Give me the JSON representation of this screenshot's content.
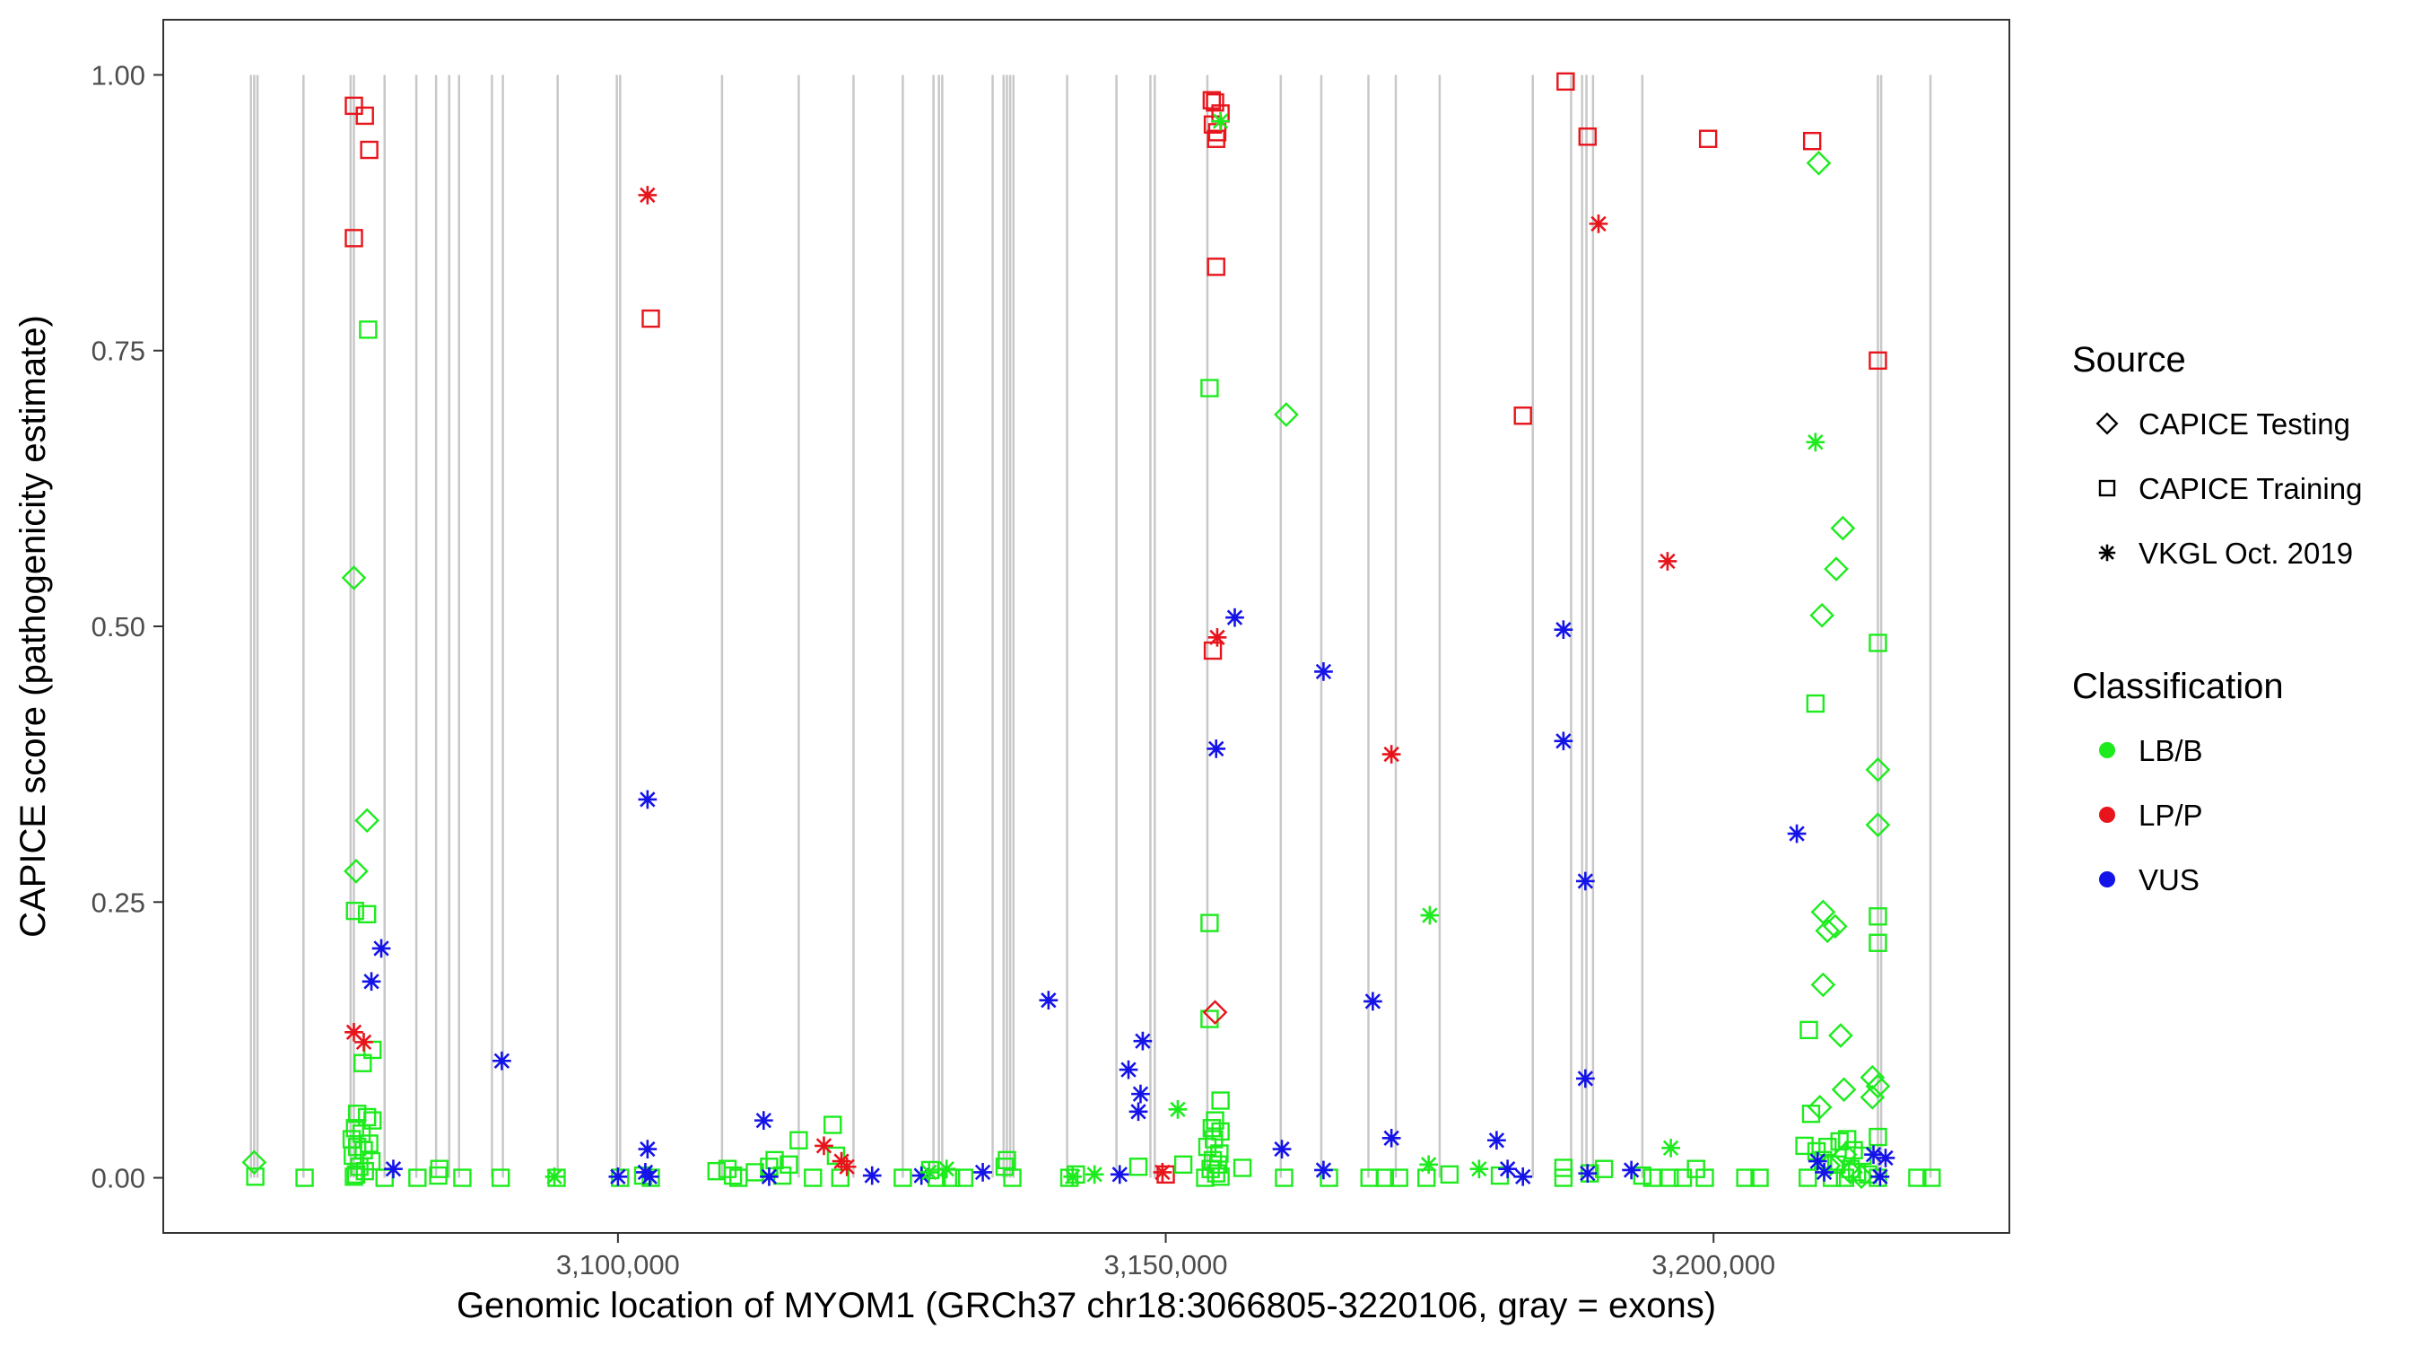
{
  "chart_data": {
    "type": "scatter",
    "title": "",
    "xlabel": "Genomic location of MYOM1 (GRCh37 chr18:3066805-3220106, gray = exons)",
    "ylabel": "CAPICE score (pathogenicity estimate)",
    "xlim": [
      3058500,
      3227000
    ],
    "ylim": [
      -0.05,
      1.05
    ],
    "x_ticks": [
      3100000,
      3150000,
      3200000
    ],
    "x_tick_labels": [
      "3,100,000",
      "3,150,000",
      "3,200,000"
    ],
    "y_ticks": [
      0.0,
      0.25,
      0.5,
      0.75,
      1.0
    ],
    "y_tick_labels": [
      "0.00",
      "0.25",
      "0.50",
      "0.75",
      "1.00"
    ],
    "grid": false,
    "exons": [
      3066500,
      3066800,
      3067100,
      3071300,
      3075600,
      3075900,
      3078700,
      3081600,
      3083400,
      3084600,
      3085500,
      3088500,
      3089500,
      3094500,
      3099900,
      3100200,
      3109500,
      3116500,
      3121500,
      3126000,
      3128800,
      3129300,
      3129600,
      3134200,
      3135200,
      3135500,
      3135800,
      3136100,
      3141000,
      3145500,
      3148600,
      3149000,
      3153800,
      3160500,
      3164200,
      3168500,
      3171000,
      3175000,
      3183500,
      3187000,
      3188000,
      3188400,
      3189000,
      3193500,
      3215000,
      3215300,
      3219800
    ],
    "legend": {
      "source_title": "Source",
      "source_entries": [
        {
          "label": "CAPICE Testing",
          "shape": "diamond"
        },
        {
          "label": "CAPICE Training",
          "shape": "square"
        },
        {
          "label": "VKGL Oct. 2019",
          "shape": "asterisk"
        }
      ],
      "classification_title": "Classification",
      "classification_entries": [
        {
          "label": "LB/B",
          "color": "#1DEB1D"
        },
        {
          "label": "LP/P",
          "color": "#E8141B"
        },
        {
          "label": "VUS",
          "color": "#1414E8"
        }
      ],
      "placement": "right"
    },
    "series": [
      {
        "name": "CAPICE Training LP/P",
        "shape": "square",
        "color": "#E8141B",
        "points": [
          [
            3075900,
            0.972
          ],
          [
            3076900,
            0.963
          ],
          [
            3077300,
            0.932
          ],
          [
            3075900,
            0.852
          ],
          [
            3103000,
            0.779
          ],
          [
            3154200,
            0.977
          ],
          [
            3154500,
            0.975
          ],
          [
            3155000,
            0.965
          ],
          [
            3154300,
            0.955
          ],
          [
            3154700,
            0.948
          ],
          [
            3154600,
            0.942
          ],
          [
            3154600,
            0.826
          ],
          [
            3154300,
            0.478
          ],
          [
            3150000,
            0.003
          ],
          [
            3186500,
            0.994
          ],
          [
            3188500,
            0.944
          ],
          [
            3199500,
            0.942
          ],
          [
            3209000,
            0.94
          ],
          [
            3182600,
            0.691
          ],
          [
            3215000,
            0.741
          ]
        ]
      },
      {
        "name": "CAPICE Training LB/B",
        "shape": "square",
        "color": "#1DEB1D",
        "points": [
          [
            3077200,
            0.769
          ],
          [
            3076000,
            0.242
          ],
          [
            3077100,
            0.239
          ],
          [
            3077600,
            0.116
          ],
          [
            3076700,
            0.104
          ],
          [
            3076200,
            0.058
          ],
          [
            3077100,
            0.055
          ],
          [
            3077600,
            0.052
          ],
          [
            3076000,
            0.045
          ],
          [
            3076600,
            0.04
          ],
          [
            3075700,
            0.035
          ],
          [
            3077300,
            0.031
          ],
          [
            3076200,
            0.028
          ],
          [
            3076800,
            0.025
          ],
          [
            3075800,
            0.02
          ],
          [
            3077500,
            0.015
          ],
          [
            3076400,
            0.01
          ],
          [
            3076900,
            0.006
          ],
          [
            3076100,
            0.003
          ],
          [
            3075900,
            0.001
          ],
          [
            3066900,
            0.001
          ],
          [
            3071400,
            0.0
          ],
          [
            3083700,
            0.008
          ],
          [
            3083600,
            0.002
          ],
          [
            3078700,
            0.0
          ],
          [
            3081700,
            0.0
          ],
          [
            3085800,
            0.0
          ],
          [
            3089300,
            0.0
          ],
          [
            3094400,
            0.0
          ],
          [
            3100200,
            0.0
          ],
          [
            3102300,
            0.002
          ],
          [
            3103000,
            0.0
          ],
          [
            3109000,
            0.006
          ],
          [
            3110000,
            0.008
          ],
          [
            3110500,
            0.002
          ],
          [
            3111000,
            0.0
          ],
          [
            3112500,
            0.005
          ],
          [
            3113800,
            0.01
          ],
          [
            3114300,
            0.016
          ],
          [
            3115000,
            0.002
          ],
          [
            3115600,
            0.012
          ],
          [
            3116500,
            0.034
          ],
          [
            3117800,
            0.0
          ],
          [
            3119600,
            0.048
          ],
          [
            3119900,
            0.02
          ],
          [
            3120300,
            0.0
          ],
          [
            3126000,
            0.0
          ],
          [
            3128500,
            0.007
          ],
          [
            3129100,
            0.0
          ],
          [
            3130400,
            0.0
          ],
          [
            3131600,
            0.0
          ],
          [
            3135300,
            0.01
          ],
          [
            3135500,
            0.016
          ],
          [
            3136000,
            0.0
          ],
          [
            3141200,
            0.0
          ],
          [
            3141800,
            0.003
          ],
          [
            3147500,
            0.01
          ],
          [
            3151600,
            0.012
          ],
          [
            3153600,
            0.0
          ],
          [
            3154000,
            0.716
          ],
          [
            3154000,
            0.231
          ],
          [
            3154000,
            0.144
          ],
          [
            3155000,
            0.07
          ],
          [
            3154500,
            0.052
          ],
          [
            3154200,
            0.045
          ],
          [
            3155000,
            0.042
          ],
          [
            3154400,
            0.035
          ],
          [
            3153800,
            0.028
          ],
          [
            3154900,
            0.022
          ],
          [
            3154300,
            0.016
          ],
          [
            3154800,
            0.012
          ],
          [
            3154100,
            0.008
          ],
          [
            3154600,
            0.004
          ],
          [
            3155000,
            0.001
          ],
          [
            3157000,
            0.009
          ],
          [
            3160800,
            0.0
          ],
          [
            3164900,
            0.0
          ],
          [
            3168600,
            0.0
          ],
          [
            3170000,
            0.0
          ],
          [
            3171300,
            0.0
          ],
          [
            3173800,
            0.0
          ],
          [
            3175900,
            0.003
          ],
          [
            3180500,
            0.002
          ],
          [
            3186300,
            0.009
          ],
          [
            3186300,
            0.0
          ],
          [
            3188700,
            0.004
          ],
          [
            3190000,
            0.008
          ],
          [
            3193500,
            0.002
          ],
          [
            3194400,
            0.0
          ],
          [
            3196000,
            0.0
          ],
          [
            3197200,
            0.0
          ],
          [
            3198400,
            0.008
          ],
          [
            3199200,
            0.0
          ],
          [
            3202900,
            0.0
          ],
          [
            3204200,
            0.0
          ],
          [
            3208700,
            0.134
          ],
          [
            3208900,
            0.058
          ],
          [
            3209300,
            0.43
          ],
          [
            3208300,
            0.029
          ],
          [
            3209400,
            0.024
          ],
          [
            3210400,
            0.028
          ],
          [
            3211500,
            0.033
          ],
          [
            3212200,
            0.035
          ],
          [
            3212800,
            0.025
          ],
          [
            3213600,
            0.02
          ],
          [
            3210000,
            0.016
          ],
          [
            3211200,
            0.012
          ],
          [
            3212500,
            0.008
          ],
          [
            3213100,
            0.005
          ],
          [
            3214100,
            0.003
          ],
          [
            3208600,
            0.0
          ],
          [
            3210800,
            0.0
          ],
          [
            3212000,
            0.0
          ],
          [
            3215000,
            0.485
          ],
          [
            3215000,
            0.237
          ],
          [
            3215000,
            0.213
          ],
          [
            3215000,
            0.037
          ],
          [
            3215000,
            0.0
          ],
          [
            3218600,
            0.0
          ],
          [
            3219900,
            0.0
          ]
        ]
      },
      {
        "name": "CAPICE Testing LB/B",
        "shape": "diamond",
        "color": "#1DEB1D",
        "points": [
          [
            3066800,
            0.014
          ],
          [
            3075900,
            0.544
          ],
          [
            3077100,
            0.324
          ],
          [
            3076100,
            0.278
          ],
          [
            3161000,
            0.692
          ],
          [
            3209600,
            0.92
          ],
          [
            3211800,
            0.589
          ],
          [
            3211200,
            0.552
          ],
          [
            3209900,
            0.51
          ],
          [
            3215000,
            0.37
          ],
          [
            3215000,
            0.32
          ],
          [
            3210000,
            0.241
          ],
          [
            3211100,
            0.228
          ],
          [
            3210400,
            0.224
          ],
          [
            3210000,
            0.175
          ],
          [
            3211600,
            0.129
          ],
          [
            3214500,
            0.091
          ],
          [
            3215000,
            0.083
          ],
          [
            3211900,
            0.08
          ],
          [
            3214500,
            0.073
          ],
          [
            3209700,
            0.064
          ],
          [
            3212000,
            0.021
          ],
          [
            3212500,
            0.005
          ],
          [
            3213500,
            0.001
          ],
          [
            3210500,
            0.011
          ]
        ]
      },
      {
        "name": "CAPICE Testing LP/P",
        "shape": "diamond",
        "color": "#E8141B",
        "points": [
          [
            3154500,
            0.15
          ]
        ]
      },
      {
        "name": "VKGL Oct. 2019 LP/P",
        "shape": "asterisk",
        "color": "#E8141B",
        "points": [
          [
            3102700,
            0.891
          ],
          [
            3075900,
            0.132
          ],
          [
            3076800,
            0.123
          ],
          [
            3118800,
            0.029
          ],
          [
            3120400,
            0.015
          ],
          [
            3120900,
            0.01
          ],
          [
            3149700,
            0.005
          ],
          [
            3154700,
            0.49
          ],
          [
            3170600,
            0.384
          ],
          [
            3189500,
            0.865
          ],
          [
            3195800,
            0.559
          ]
        ]
      },
      {
        "name": "VKGL Oct. 2019 VUS",
        "shape": "asterisk",
        "color": "#1414E8",
        "points": [
          [
            3078400,
            0.208
          ],
          [
            3077500,
            0.178
          ],
          [
            3079500,
            0.008
          ],
          [
            3089400,
            0.106
          ],
          [
            3100000,
            0.001
          ],
          [
            3102700,
            0.343
          ],
          [
            3102700,
            0.026
          ],
          [
            3102500,
            0.005
          ],
          [
            3102900,
            0.001
          ],
          [
            3113300,
            0.052
          ],
          [
            3113800,
            0.001
          ],
          [
            3123200,
            0.002
          ],
          [
            3127700,
            0.002
          ],
          [
            3133300,
            0.005
          ],
          [
            3139300,
            0.161
          ],
          [
            3146600,
            0.098
          ],
          [
            3147700,
            0.076
          ],
          [
            3147500,
            0.06
          ],
          [
            3147900,
            0.124
          ],
          [
            3156300,
            0.508
          ],
          [
            3154600,
            0.389
          ],
          [
            3160600,
            0.026
          ],
          [
            3164400,
            0.459
          ],
          [
            3164400,
            0.007
          ],
          [
            3168900,
            0.16
          ],
          [
            3170600,
            0.036
          ],
          [
            3180200,
            0.034
          ],
          [
            3181200,
            0.008
          ],
          [
            3182600,
            0.001
          ],
          [
            3186300,
            0.497
          ],
          [
            3186300,
            0.396
          ],
          [
            3188300,
            0.269
          ],
          [
            3188300,
            0.09
          ],
          [
            3188500,
            0.004
          ],
          [
            3192500,
            0.007
          ],
          [
            3207600,
            0.312
          ],
          [
            3209500,
            0.015
          ],
          [
            3214600,
            0.021
          ],
          [
            3215700,
            0.018
          ],
          [
            3215200,
            0.001
          ],
          [
            3210100,
            0.005
          ],
          [
            3145800,
            0.003
          ]
        ]
      },
      {
        "name": "VKGL Oct. 2019 LB/B",
        "shape": "asterisk",
        "color": "#1DEB1D",
        "points": [
          [
            3094200,
            0.001
          ],
          [
            3128400,
            0.005
          ],
          [
            3130000,
            0.008
          ],
          [
            3141500,
            0.001
          ],
          [
            3143500,
            0.003
          ],
          [
            3151100,
            0.062
          ],
          [
            3174100,
            0.238
          ],
          [
            3174000,
            0.012
          ],
          [
            3178600,
            0.008
          ],
          [
            3196100,
            0.027
          ],
          [
            3209300,
            0.667
          ],
          [
            3155000,
            0.958
          ]
        ]
      }
    ]
  }
}
